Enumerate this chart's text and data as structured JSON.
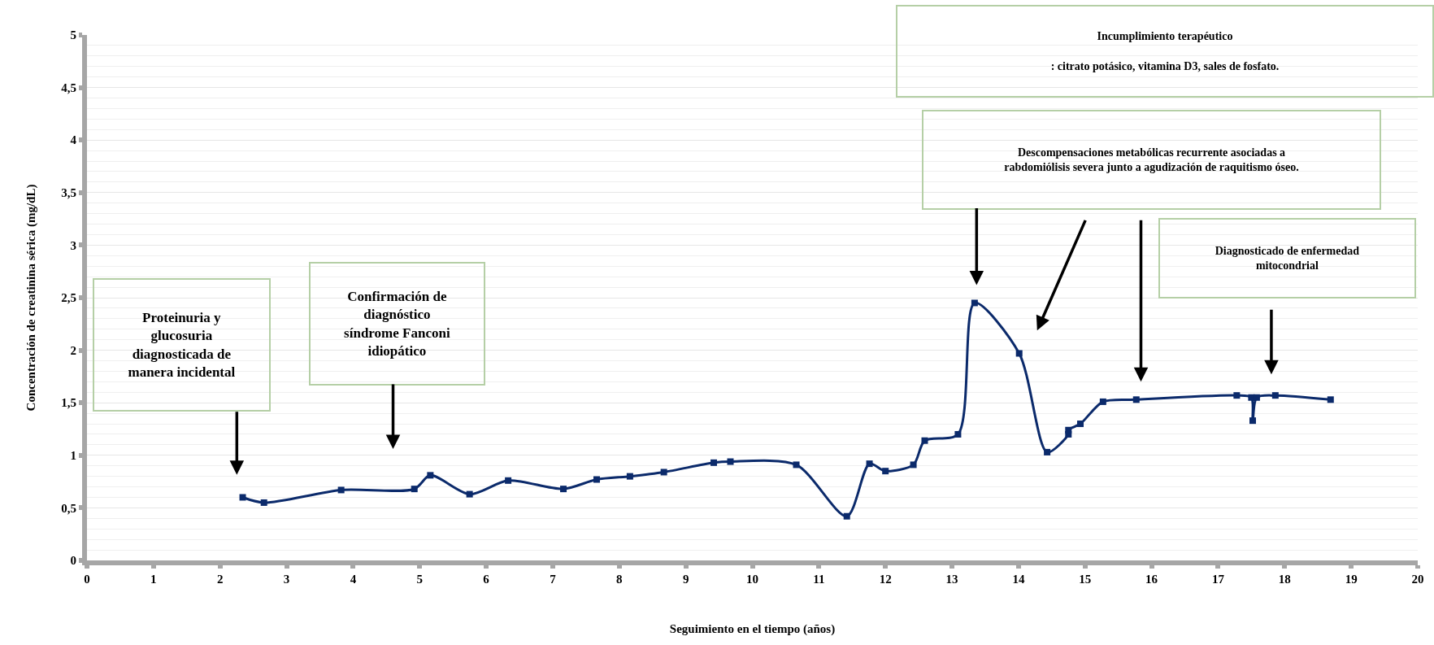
{
  "chart_data": {
    "type": "line",
    "xlabel": "Seguimiento en el tiempo (años)",
    "ylabel": "Concentración de creatinina sérica (mg/dL)",
    "x": [
      2.34,
      2.66,
      3.82,
      4.92,
      5.16,
      5.75,
      6.33,
      7.16,
      7.66,
      8.16,
      8.67,
      9.42,
      9.67,
      10.66,
      11.42,
      11.76,
      12.0,
      12.42,
      12.59,
      13.09,
      13.34,
      14.01,
      14.43,
      14.75,
      14.75,
      14.93,
      15.27,
      15.77,
      17.28,
      17.5,
      17.52,
      17.58,
      17.86,
      18.69
    ],
    "series": [
      {
        "color": "#0b2a6b",
        "values": [
          0.6,
          0.55,
          0.67,
          0.68,
          0.81,
          0.63,
          0.76,
          0.68,
          0.77,
          0.8,
          0.84,
          0.93,
          0.94,
          0.91,
          0.42,
          0.92,
          0.85,
          0.91,
          1.14,
          1.2,
          2.45,
          1.97,
          1.03,
          1.2,
          1.24,
          1.3,
          1.51,
          1.53,
          1.57,
          1.55,
          1.33,
          1.55,
          1.57,
          1.53
        ]
      }
    ],
    "marker": "square",
    "line_style": "solid",
    "grid": "y",
    "xlim": [
      0,
      20
    ],
    "xticks": [
      0,
      1,
      2,
      3,
      4,
      5,
      6,
      7,
      8,
      9,
      10,
      11,
      12,
      13,
      14,
      15,
      16,
      17,
      18,
      19,
      20
    ],
    "ylim": [
      0,
      5
    ],
    "yticks": [
      0,
      {
        "value": 0.5,
        "label": "0,5"
      },
      1,
      {
        "value": 1.5,
        "label": "1,5"
      },
      2,
      {
        "value": 2.5,
        "label": "2,5"
      },
      3,
      {
        "value": 3.5,
        "label": "3,5"
      },
      4,
      {
        "value": 4.5,
        "label": "4,5"
      },
      5
    ],
    "annotations": [
      "Proteinuria y\nglucosuria\ndiagnosticada de\nmanera incidental",
      "Confirmación de\ndiagnóstico\nsíndrome Fanconi\nidiopático",
      "Incumplimiento terapéutico\n\n: citrato potásico, vitamina D3, sales de fosfato.",
      "Descompensaciones metabólicas recurrente asociadas a\nrabdomiólisis severa junto a agudización de raquitismo óseo.",
      "Diagnosticado de enfermedad\nmitocondrial"
    ]
  }
}
